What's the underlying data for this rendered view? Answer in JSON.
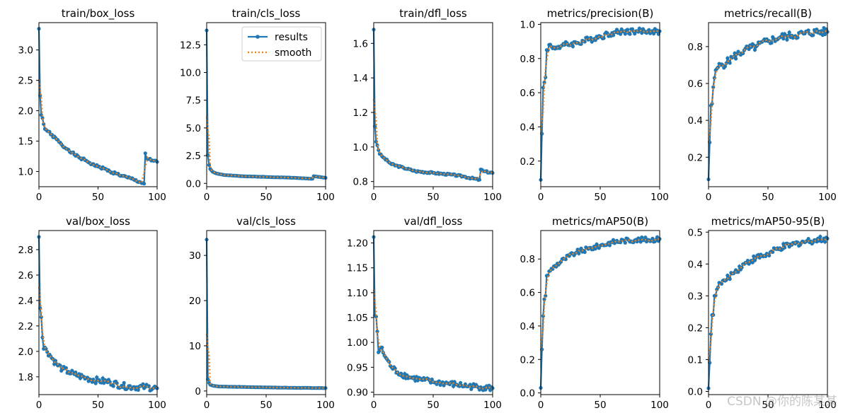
{
  "legend": {
    "series": [
      "results",
      "smooth"
    ]
  },
  "colors": {
    "results": "#1f77b4",
    "smooth": "#ff7f0e",
    "axis": "#000000"
  },
  "watermark": "CSDN @你的陈某某",
  "chart_data": [
    {
      "type": "line",
      "title": "train/box_loss",
      "xlim": [
        0,
        100
      ],
      "ylim": [
        0.75,
        3.45
      ],
      "xticks": [
        0,
        50,
        100
      ],
      "yticks": [
        1.0,
        1.5,
        2.0,
        2.5,
        3.0
      ],
      "ytick_labels": [
        "1.0",
        "1.5",
        "2.0",
        "2.5",
        "3.0"
      ],
      "anchors": [
        [
          0,
          3.35
        ],
        [
          1,
          2.25
        ],
        [
          2,
          1.93
        ],
        [
          3,
          1.88
        ],
        [
          4,
          1.78
        ],
        [
          5,
          1.7
        ],
        [
          8,
          1.66
        ],
        [
          10,
          1.61
        ],
        [
          15,
          1.53
        ],
        [
          20,
          1.42
        ],
        [
          25,
          1.36
        ],
        [
          30,
          1.28
        ],
        [
          35,
          1.22
        ],
        [
          40,
          1.18
        ],
        [
          45,
          1.12
        ],
        [
          50,
          1.08
        ],
        [
          55,
          1.05
        ],
        [
          60,
          1.0
        ],
        [
          65,
          0.97
        ],
        [
          70,
          0.93
        ],
        [
          75,
          0.9
        ],
        [
          80,
          0.87
        ],
        [
          85,
          0.83
        ],
        [
          89,
          0.8
        ],
        [
          90,
          1.3
        ],
        [
          91,
          1.22
        ],
        [
          95,
          1.18
        ],
        [
          100,
          1.16
        ]
      ],
      "noise": 0.02,
      "seed": 1
    },
    {
      "type": "line",
      "title": "train/cls_loss",
      "xlim": [
        0,
        100
      ],
      "ylim": [
        -0.3,
        14.5
      ],
      "xticks": [
        0,
        50,
        100
      ],
      "yticks": [
        0.0,
        2.5,
        5.0,
        7.5,
        10.0,
        12.5
      ],
      "ytick_labels": [
        "0.0",
        "2.5",
        "5.0",
        "7.5",
        "10.0",
        "12.5"
      ],
      "anchors": [
        [
          0,
          13.8
        ],
        [
          1,
          2.55
        ],
        [
          2,
          1.65
        ],
        [
          3,
          1.3
        ],
        [
          5,
          1.05
        ],
        [
          8,
          0.9
        ],
        [
          15,
          0.75
        ],
        [
          30,
          0.65
        ],
        [
          50,
          0.58
        ],
        [
          70,
          0.52
        ],
        [
          89,
          0.42
        ],
        [
          90,
          0.65
        ],
        [
          100,
          0.5
        ]
      ],
      "noise": 0.01,
      "seed": 2,
      "legend": true
    },
    {
      "type": "line",
      "title": "train/dfl_loss",
      "xlim": [
        0,
        100
      ],
      "ylim": [
        0.77,
        1.72
      ],
      "xticks": [
        0,
        50,
        100
      ],
      "yticks": [
        0.8,
        1.0,
        1.2,
        1.4,
        1.6
      ],
      "ytick_labels": [
        "0.8",
        "1.0",
        "1.2",
        "1.4",
        "1.6"
      ],
      "anchors": [
        [
          0,
          1.68
        ],
        [
          1,
          1.12
        ],
        [
          2,
          1.03
        ],
        [
          3,
          1.01
        ],
        [
          5,
          0.96
        ],
        [
          8,
          0.94
        ],
        [
          15,
          0.9
        ],
        [
          25,
          0.88
        ],
        [
          35,
          0.86
        ],
        [
          50,
          0.85
        ],
        [
          65,
          0.84
        ],
        [
          75,
          0.83
        ],
        [
          89,
          0.81
        ],
        [
          90,
          0.87
        ],
        [
          92,
          0.86
        ],
        [
          100,
          0.85
        ]
      ],
      "noise": 0.005,
      "seed": 3
    },
    {
      "type": "line",
      "title": "metrics/precision(B)",
      "xlim": [
        0,
        100
      ],
      "ylim": [
        0.05,
        1.01
      ],
      "xticks": [
        0,
        50,
        100
      ],
      "yticks": [
        0.2,
        0.4,
        0.6,
        0.8,
        1.0
      ],
      "ytick_labels": [
        "0.2",
        "0.4",
        "0.6",
        "0.8",
        "1.0"
      ],
      "anchors": [
        [
          0,
          0.09
        ],
        [
          1,
          0.36
        ],
        [
          2,
          0.63
        ],
        [
          3,
          0.66
        ],
        [
          4,
          0.69
        ],
        [
          5,
          0.85
        ],
        [
          7,
          0.88
        ],
        [
          10,
          0.86
        ],
        [
          15,
          0.87
        ],
        [
          20,
          0.88
        ],
        [
          30,
          0.89
        ],
        [
          40,
          0.91
        ],
        [
          50,
          0.93
        ],
        [
          60,
          0.95
        ],
        [
          70,
          0.96
        ],
        [
          80,
          0.96
        ],
        [
          90,
          0.96
        ],
        [
          100,
          0.96
        ]
      ],
      "noise": 0.018,
      "seed": 4
    },
    {
      "type": "line",
      "title": "metrics/recall(B)",
      "xlim": [
        0,
        100
      ],
      "ylim": [
        0.04,
        0.93
      ],
      "xticks": [
        0,
        50,
        100
      ],
      "yticks": [
        0.2,
        0.4,
        0.6,
        0.8
      ],
      "ytick_labels": [
        "0.2",
        "0.4",
        "0.6",
        "0.8"
      ],
      "anchors": [
        [
          0,
          0.08
        ],
        [
          1,
          0.28
        ],
        [
          2,
          0.48
        ],
        [
          3,
          0.49
        ],
        [
          4,
          0.58
        ],
        [
          5,
          0.63
        ],
        [
          7,
          0.68
        ],
        [
          10,
          0.7
        ],
        [
          15,
          0.71
        ],
        [
          20,
          0.74
        ],
        [
          30,
          0.78
        ],
        [
          40,
          0.8
        ],
        [
          50,
          0.83
        ],
        [
          60,
          0.85
        ],
        [
          70,
          0.86
        ],
        [
          80,
          0.87
        ],
        [
          90,
          0.88
        ],
        [
          100,
          0.88
        ]
      ],
      "noise": 0.022,
      "seed": 5
    },
    {
      "type": "line",
      "title": "val/box_loss",
      "xlim": [
        0,
        100
      ],
      "ylim": [
        1.66,
        2.95
      ],
      "xticks": [
        0,
        50,
        100
      ],
      "yticks": [
        1.8,
        2.0,
        2.2,
        2.4,
        2.6,
        2.8
      ],
      "ytick_labels": [
        "1.8",
        "2.0",
        "2.2",
        "2.4",
        "2.6",
        "2.8"
      ],
      "anchors": [
        [
          0,
          2.9
        ],
        [
          1,
          2.34
        ],
        [
          2,
          2.27
        ],
        [
          3,
          2.11
        ],
        [
          4,
          2.02
        ],
        [
          6,
          2.02
        ],
        [
          10,
          1.96
        ],
        [
          15,
          1.9
        ],
        [
          20,
          1.86
        ],
        [
          25,
          1.84
        ],
        [
          30,
          1.82
        ],
        [
          40,
          1.79
        ],
        [
          50,
          1.77
        ],
        [
          60,
          1.76
        ],
        [
          70,
          1.73
        ],
        [
          80,
          1.72
        ],
        [
          90,
          1.72
        ],
        [
          100,
          1.71
        ]
      ],
      "noise": 0.025,
      "seed": 6
    },
    {
      "type": "line",
      "title": "val/cls_loss",
      "xlim": [
        0,
        100
      ],
      "ylim": [
        -0.8,
        35.5
      ],
      "xticks": [
        0,
        50,
        100
      ],
      "yticks": [
        0,
        10,
        20,
        30
      ],
      "ytick_labels": [
        "0",
        "10",
        "20",
        "30"
      ],
      "anchors": [
        [
          0,
          33.5
        ],
        [
          1,
          2.6
        ],
        [
          2,
          1.8
        ],
        [
          3,
          1.4
        ],
        [
          5,
          1.2
        ],
        [
          10,
          1.0
        ],
        [
          30,
          0.9
        ],
        [
          50,
          0.8
        ],
        [
          75,
          0.7
        ],
        [
          100,
          0.65
        ]
      ],
      "noise": 0.02,
      "seed": 7
    },
    {
      "type": "line",
      "title": "val/dfl_loss",
      "xlim": [
        0,
        100
      ],
      "ylim": [
        0.895,
        1.225
      ],
      "xticks": [
        0,
        50,
        100
      ],
      "yticks": [
        0.9,
        0.95,
        1.0,
        1.05,
        1.1,
        1.15,
        1.2
      ],
      "ytick_labels": [
        "0.90",
        "0.95",
        "1.00",
        "1.05",
        "1.10",
        "1.15",
        "1.20"
      ],
      "anchors": [
        [
          0,
          1.212
        ],
        [
          1,
          1.054
        ],
        [
          2,
          1.052
        ],
        [
          3,
          1.022
        ],
        [
          4,
          0.98
        ],
        [
          6,
          0.99
        ],
        [
          10,
          0.97
        ],
        [
          15,
          0.95
        ],
        [
          20,
          0.94
        ],
        [
          30,
          0.93
        ],
        [
          40,
          0.925
        ],
        [
          50,
          0.92
        ],
        [
          60,
          0.918
        ],
        [
          70,
          0.915
        ],
        [
          80,
          0.912
        ],
        [
          90,
          0.91
        ],
        [
          100,
          0.908
        ]
      ],
      "noise": 0.006,
      "seed": 8
    },
    {
      "type": "line",
      "title": "metrics/mAP50(B)",
      "xlim": [
        0,
        100
      ],
      "ylim": [
        -0.01,
        0.97
      ],
      "xticks": [
        0,
        50,
        100
      ],
      "yticks": [
        0.0,
        0.2,
        0.4,
        0.6,
        0.8
      ],
      "ytick_labels": [
        "0.0",
        "0.2",
        "0.4",
        "0.6",
        "0.8"
      ],
      "anchors": [
        [
          0,
          0.03
        ],
        [
          1,
          0.26
        ],
        [
          2,
          0.46
        ],
        [
          3,
          0.56
        ],
        [
          4,
          0.58
        ],
        [
          5,
          0.7
        ],
        [
          8,
          0.73
        ],
        [
          12,
          0.76
        ],
        [
          20,
          0.8
        ],
        [
          30,
          0.84
        ],
        [
          40,
          0.86
        ],
        [
          50,
          0.88
        ],
        [
          60,
          0.9
        ],
        [
          70,
          0.91
        ],
        [
          80,
          0.915
        ],
        [
          90,
          0.915
        ],
        [
          100,
          0.92
        ]
      ],
      "noise": 0.015,
      "seed": 9
    },
    {
      "type": "line",
      "title": "metrics/mAP50-95(B)",
      "xlim": [
        0,
        100
      ],
      "ylim": [
        -0.01,
        0.505
      ],
      "xticks": [
        0,
        50,
        100
      ],
      "yticks": [
        0.0,
        0.1,
        0.2,
        0.3,
        0.4,
        0.5
      ],
      "ytick_labels": [
        "0.0",
        "0.1",
        "0.2",
        "0.3",
        "0.4",
        "0.5"
      ],
      "anchors": [
        [
          0,
          0.01
        ],
        [
          1,
          0.09
        ],
        [
          2,
          0.18
        ],
        [
          3,
          0.24
        ],
        [
          4,
          0.24
        ],
        [
          5,
          0.3
        ],
        [
          7,
          0.32
        ],
        [
          10,
          0.34
        ],
        [
          15,
          0.35
        ],
        [
          20,
          0.37
        ],
        [
          30,
          0.4
        ],
        [
          40,
          0.42
        ],
        [
          50,
          0.43
        ],
        [
          60,
          0.45
        ],
        [
          70,
          0.46
        ],
        [
          80,
          0.47
        ],
        [
          90,
          0.475
        ],
        [
          100,
          0.48
        ]
      ],
      "noise": 0.01,
      "seed": 10
    }
  ]
}
